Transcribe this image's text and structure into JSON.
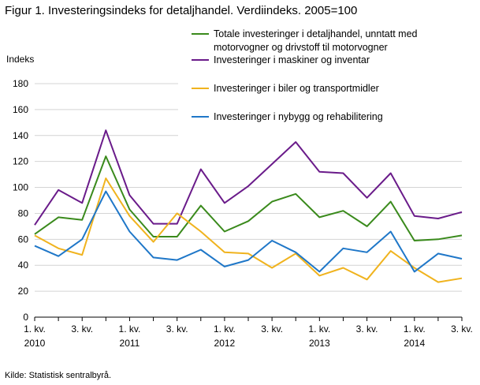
{
  "title": "Figur 1. Investeringsindeks for detaljhandel. Verdiindeks. 2005=100",
  "source": "Kilde: Statistisk sentralbyrå.",
  "chart_data": {
    "type": "line",
    "title": "Figur 1. Investeringsindeks for detaljhandel. Verdiindeks. 2005=100",
    "ylabel": "Indeks",
    "xlabel": "",
    "ylim": [
      0,
      180
    ],
    "yticks": [
      0,
      20,
      40,
      60,
      80,
      100,
      120,
      140,
      160,
      180
    ],
    "grid": "horizontal",
    "legend_position": "top-right",
    "x_tick_labels": [
      {
        "index": 0,
        "line1": "1. kv.",
        "line2": "2010"
      },
      {
        "index": 2,
        "line1": "3. kv.",
        "line2": ""
      },
      {
        "index": 4,
        "line1": "1. kv.",
        "line2": "2011"
      },
      {
        "index": 6,
        "line1": "3. kv.",
        "line2": ""
      },
      {
        "index": 8,
        "line1": "1. kv.",
        "line2": "2012"
      },
      {
        "index": 10,
        "line1": "3. kv.",
        "line2": ""
      },
      {
        "index": 12,
        "line1": "1. kv.",
        "line2": "2013"
      },
      {
        "index": 14,
        "line1": "3. kv.",
        "line2": ""
      },
      {
        "index": 16,
        "line1": "1. kv.",
        "line2": "2014"
      },
      {
        "index": 18,
        "line1": "3. kv.",
        "line2": ""
      }
    ],
    "x": [
      "2010K1",
      "2010K2",
      "2010K3",
      "2010K4",
      "2011K1",
      "2011K2",
      "2011K3",
      "2011K4",
      "2012K1",
      "2012K2",
      "2012K3",
      "2012K4",
      "2013K1",
      "2013K2",
      "2013K3",
      "2013K4",
      "2014K1",
      "2014K2",
      "2014K3"
    ],
    "series": [
      {
        "name": [
          "Totale investeringer i detaljhandel, unntatt med",
          "motorvogner og drivstoff til motorvogner"
        ],
        "color": "#3a8a1c",
        "values": [
          64,
          77,
          75,
          124,
          83,
          62,
          62,
          86,
          66,
          74,
          89,
          95,
          77,
          82,
          70,
          89,
          59,
          60,
          63
        ]
      },
      {
        "name": [
          "Investeringer i maskiner og inventar"
        ],
        "color": "#6a1b8a",
        "values": [
          71,
          98,
          88,
          144,
          94,
          72,
          72,
          114,
          88,
          101,
          118,
          135,
          112,
          111,
          92,
          111,
          78,
          76,
          81
        ]
      },
      {
        "name": [
          "Investeringer i biler og transportmidler"
        ],
        "color": "#f0b31e",
        "values": [
          63,
          53,
          48,
          107,
          78,
          58,
          80,
          66,
          50,
          49,
          38,
          49,
          32,
          38,
          29,
          51,
          38,
          27,
          30
        ]
      },
      {
        "name": [
          "Investeringer i nybygg og rehabilitering"
        ],
        "color": "#1f77c8",
        "values": [
          55,
          47,
          60,
          97,
          66,
          46,
          44,
          52,
          39,
          44,
          59,
          50,
          35,
          53,
          50,
          66,
          35,
          49,
          45
        ]
      }
    ]
  }
}
